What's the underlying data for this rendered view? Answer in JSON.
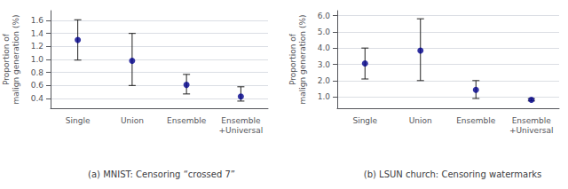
{
  "chart_data": [
    {
      "type": "scatter",
      "title": "(a) MNIST: Censoring “crossed 7”",
      "ylabel": "Proportion of\nmalign generation (%)",
      "categories": [
        "Single",
        "Union",
        "Ensemble",
        "Ensemble\n+Universal"
      ],
      "values": [
        1.3,
        0.98,
        0.61,
        0.43
      ],
      "err_low": [
        0.31,
        0.38,
        0.14,
        0.07
      ],
      "err_high": [
        0.31,
        0.42,
        0.16,
        0.15
      ],
      "ylim": [
        0.25,
        1.75
      ],
      "yticks": [
        0.4,
        0.6,
        0.8,
        {
          "value": 1.0,
          "label": "1.0"
        },
        1.2,
        1.4,
        1.6
      ],
      "color": "#00008B",
      "marker": "circle",
      "grid": true
    },
    {
      "type": "scatter",
      "title": "(b) LSUN church: Censoring watermarks",
      "ylabel": "Proportion of\nmalign generation (%)",
      "categories": [
        "Single",
        "Union",
        "Ensemble",
        "Ensemble\n+Universal"
      ],
      "values": [
        3.05,
        3.85,
        1.43,
        0.82
      ],
      "err_low": [
        0.95,
        1.85,
        0.53,
        0.07
      ],
      "err_high": [
        0.95,
        1.95,
        0.57,
        0.07
      ],
      "ylim": [
        0.3,
        6.3
      ],
      "yticks": [
        {
          "value": 1.0,
          "label": "1.0"
        },
        {
          "value": 2.0,
          "label": "2.0"
        },
        {
          "value": 3.0,
          "label": "3.0"
        },
        {
          "value": 4.0,
          "label": "4.0"
        },
        {
          "value": 5.0,
          "label": "5.0"
        },
        {
          "value": 6.0,
          "label": "6.0"
        }
      ],
      "color": "#00008B",
      "marker": "circle",
      "grid": true
    }
  ]
}
